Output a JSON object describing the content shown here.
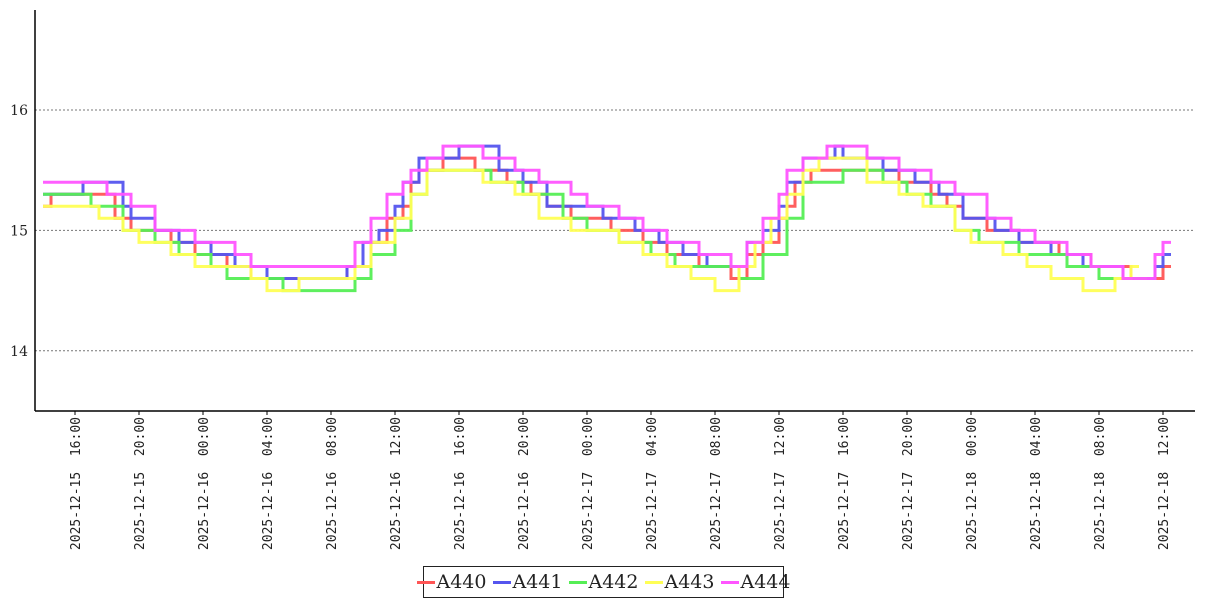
{
  "chart_data": {
    "type": "line",
    "step": true,
    "ylim": [
      13.5,
      16.83
    ],
    "yticks": [
      "14",
      "15",
      "16"
    ],
    "grid": "horizontal dotted at y ticks",
    "legend_placement": "bottom-center",
    "x_range": [
      "2025-12-15 13:30",
      "2025-12-18 14:00"
    ],
    "xticks": [
      "2025-12-15 16:00",
      "2025-12-15 20:00",
      "2025-12-16 00:00",
      "2025-12-16 04:00",
      "2025-12-16 08:00",
      "2025-12-16 12:00",
      "2025-12-16 16:00",
      "2025-12-16 20:00",
      "2025-12-17 00:00",
      "2025-12-17 04:00",
      "2025-12-17 08:00",
      "2025-12-17 12:00",
      "2025-12-17 16:00",
      "2025-12-17 20:00",
      "2025-12-18 00:00",
      "2025-12-18 04:00",
      "2025-12-18 08:00",
      "2025-12-18 12:00"
    ],
    "series": [
      {
        "name": "A440",
        "color": "#ff5555",
        "x": [
          "2025-12-15 14:00",
          "2025-12-15 14:30",
          "2025-12-15 18:30",
          "2025-12-15 19:30",
          "2025-12-15 20:00",
          "2025-12-15 22:00",
          "2025-12-15 23:30",
          "2025-12-16 01:30",
          "2025-12-16 03:00",
          "2025-12-16 05:00",
          "2025-12-16 09:00",
          "2025-12-16 10:30",
          "2025-12-16 11:30",
          "2025-12-16 12:30",
          "2025-12-16 13:00",
          "2025-12-16 13:30",
          "2025-12-16 15:00",
          "2025-12-16 17:00",
          "2025-12-16 19:00",
          "2025-12-16 20:30",
          "2025-12-16 21:30",
          "2025-12-16 23:00",
          "2025-12-17 01:30",
          "2025-12-17 03:30",
          "2025-12-17 05:00",
          "2025-12-17 07:00",
          "2025-12-17 09:00",
          "2025-12-17 10:00",
          "2025-12-17 11:00",
          "2025-12-17 12:00",
          "2025-12-17 12:30",
          "2025-12-17 13:00",
          "2025-12-17 14:00",
          "2025-12-17 17:30",
          "2025-12-17 19:30",
          "2025-12-17 21:30",
          "2025-12-17 22:30",
          "2025-12-17 23:30",
          "2025-12-18 01:00",
          "2025-12-18 03:00",
          "2025-12-18 05:30",
          "2025-12-18 07:30",
          "2025-12-18 10:00",
          "2025-12-18 12:00"
        ],
        "values": [
          15.2,
          15.3,
          15.1,
          15.0,
          15.0,
          14.9,
          14.8,
          14.7,
          14.6,
          14.6,
          14.7,
          14.9,
          15.1,
          15.2,
          15.4,
          15.5,
          15.6,
          15.5,
          15.4,
          15.3,
          15.2,
          15.1,
          15.0,
          14.9,
          14.8,
          14.7,
          14.6,
          14.8,
          14.9,
          15.1,
          15.2,
          15.4,
          15.5,
          15.5,
          15.4,
          15.3,
          15.2,
          15.1,
          15.0,
          14.9,
          14.8,
          14.7,
          14.6,
          14.7
        ]
      },
      {
        "name": "A441",
        "color": "#5555ee",
        "x": [
          "2025-12-15 14:00",
          "2025-12-15 14:30",
          "2025-12-15 16:30",
          "2025-12-15 19:00",
          "2025-12-15 19:30",
          "2025-12-15 21:00",
          "2025-12-15 22:30",
          "2025-12-16 00:30",
          "2025-12-16 02:00",
          "2025-12-16 04:00",
          "2025-12-16 09:00",
          "2025-12-16 10:00",
          "2025-12-16 11:00",
          "2025-12-16 12:00",
          "2025-12-16 12:30",
          "2025-12-16 13:30",
          "2025-12-16 16:00",
          "2025-12-16 18:30",
          "2025-12-16 20:00",
          "2025-12-16 21:30",
          "2025-12-16 22:30",
          "2025-12-17 01:00",
          "2025-12-17 03:00",
          "2025-12-17 04:30",
          "2025-12-17 06:00",
          "2025-12-17 07:30",
          "2025-12-17 09:00",
          "2025-12-17 10:00",
          "2025-12-17 11:00",
          "2025-12-17 12:00",
          "2025-12-17 12:30",
          "2025-12-17 13:30",
          "2025-12-17 15:30",
          "2025-12-17 16:00",
          "2025-12-17 18:30",
          "2025-12-17 20:30",
          "2025-12-17 22:00",
          "2025-12-17 23:30",
          "2025-12-18 01:30",
          "2025-12-18 03:00",
          "2025-12-18 05:00",
          "2025-12-18 07:00",
          "2025-12-18 09:30",
          "2025-12-18 11:30",
          "2025-12-18 12:00"
        ],
        "values": [
          15.3,
          15.3,
          15.4,
          15.2,
          15.1,
          15.0,
          14.9,
          14.8,
          14.7,
          14.6,
          14.7,
          14.9,
          15.0,
          15.2,
          15.4,
          15.6,
          15.7,
          15.5,
          15.4,
          15.2,
          15.2,
          15.1,
          15.0,
          14.9,
          14.8,
          14.7,
          14.7,
          14.9,
          15.0,
          15.2,
          15.4,
          15.6,
          15.7,
          15.6,
          15.5,
          15.4,
          15.3,
          15.1,
          15.0,
          14.9,
          14.8,
          14.7,
          14.6,
          14.7,
          14.8
        ]
      },
      {
        "name": "A442",
        "color": "#55ee55",
        "x": [
          "2025-12-15 14:00",
          "2025-12-15 17:00",
          "2025-12-15 19:00",
          "2025-12-15 21:00",
          "2025-12-15 22:30",
          "2025-12-16 00:30",
          "2025-12-16 01:30",
          "2025-12-16 03:00",
          "2025-12-16 05:00",
          "2025-12-16 09:30",
          "2025-12-16 10:30",
          "2025-12-16 12:00",
          "2025-12-16 13:00",
          "2025-12-16 14:00",
          "2025-12-16 18:00",
          "2025-12-16 20:00",
          "2025-12-16 22:30",
          "2025-12-17 00:00",
          "2025-12-17 02:00",
          "2025-12-17 04:00",
          "2025-12-17 05:30",
          "2025-12-17 06:30",
          "2025-12-17 09:30",
          "2025-12-17 11:00",
          "2025-12-17 12:30",
          "2025-12-17 13:30",
          "2025-12-17 16:00",
          "2025-12-17 18:30",
          "2025-12-17 20:00",
          "2025-12-17 21:30",
          "2025-12-17 23:00",
          "2025-12-18 00:30",
          "2025-12-18 03:00",
          "2025-12-18 06:00",
          "2025-12-18 08:00",
          "2025-12-18 10:30"
        ],
        "values": [
          15.3,
          15.2,
          15.0,
          14.9,
          14.8,
          14.7,
          14.6,
          14.6,
          14.5,
          14.6,
          14.8,
          15.0,
          15.3,
          15.5,
          15.4,
          15.3,
          15.1,
          15.0,
          14.9,
          14.8,
          14.7,
          14.7,
          14.6,
          14.8,
          15.1,
          15.4,
          15.5,
          15.4,
          15.3,
          15.2,
          15.0,
          14.9,
          14.8,
          14.7,
          14.6,
          14.6
        ]
      },
      {
        "name": "A443",
        "color": "#ffff55",
        "x": [
          "2025-12-15 14:00",
          "2025-12-15 17:30",
          "2025-12-15 19:00",
          "2025-12-15 20:00",
          "2025-12-15 22:00",
          "2025-12-15 23:30",
          "2025-12-16 03:00",
          "2025-12-16 04:00",
          "2025-12-16 06:00",
          "2025-12-16 09:30",
          "2025-12-16 10:30",
          "2025-12-16 12:00",
          "2025-12-16 13:00",
          "2025-12-16 14:00",
          "2025-12-16 17:30",
          "2025-12-16 19:30",
          "2025-12-16 21:00",
          "2025-12-16 23:00",
          "2025-12-17 00:00",
          "2025-12-17 02:00",
          "2025-12-17 03:30",
          "2025-12-17 05:00",
          "2025-12-17 06:30",
          "2025-12-17 08:00",
          "2025-12-17 09:30",
          "2025-12-17 10:30",
          "2025-12-17 11:30",
          "2025-12-17 12:30",
          "2025-12-17 13:30",
          "2025-12-17 14:30",
          "2025-12-17 17:30",
          "2025-12-17 19:30",
          "2025-12-17 21:00",
          "2025-12-17 23:00",
          "2025-12-18 00:00",
          "2025-12-18 02:00",
          "2025-12-18 03:30",
          "2025-12-18 05:00",
          "2025-12-18 07:00",
          "2025-12-18 09:00",
          "2025-12-18 10:00"
        ],
        "values": [
          15.2,
          15.1,
          15.0,
          14.9,
          14.8,
          14.7,
          14.6,
          14.5,
          14.6,
          14.7,
          14.9,
          15.1,
          15.3,
          15.5,
          15.4,
          15.3,
          15.1,
          15.0,
          15.0,
          14.9,
          14.8,
          14.7,
          14.6,
          14.5,
          14.7,
          14.9,
          15.1,
          15.3,
          15.5,
          15.6,
          15.4,
          15.3,
          15.2,
          15.0,
          14.9,
          14.8,
          14.7,
          14.6,
          14.5,
          14.6,
          14.7
        ]
      },
      {
        "name": "A444",
        "color": "#ff55ff",
        "x": [
          "2025-12-15 14:00",
          "2025-12-15 18:00",
          "2025-12-15 19:30",
          "2025-12-15 21:00",
          "2025-12-15 23:30",
          "2025-12-16 02:00",
          "2025-12-16 03:00",
          "2025-12-16 08:30",
          "2025-12-16 09:30",
          "2025-12-16 10:30",
          "2025-12-16 11:30",
          "2025-12-16 12:30",
          "2025-12-16 13:00",
          "2025-12-16 14:00",
          "2025-12-16 15:00",
          "2025-12-16 17:30",
          "2025-12-16 19:30",
          "2025-12-16 21:00",
          "2025-12-16 23:00",
          "2025-12-17 00:00",
          "2025-12-17 02:00",
          "2025-12-17 03:30",
          "2025-12-17 05:00",
          "2025-12-17 07:00",
          "2025-12-17 09:00",
          "2025-12-17 10:00",
          "2025-12-17 11:00",
          "2025-12-17 12:00",
          "2025-12-17 12:30",
          "2025-12-17 13:30",
          "2025-12-17 15:00",
          "2025-12-17 17:30",
          "2025-12-17 19:30",
          "2025-12-17 21:30",
          "2025-12-17 23:00",
          "2025-12-18 01:00",
          "2025-12-18 02:30",
          "2025-12-18 04:00",
          "2025-12-18 06:00",
          "2025-12-18 07:30",
          "2025-12-18 09:30",
          "2025-12-18 11:30",
          "2025-12-18 12:00"
        ],
        "values": [
          15.4,
          15.3,
          15.2,
          15.0,
          14.9,
          14.8,
          14.7,
          14.7,
          14.9,
          15.1,
          15.3,
          15.4,
          15.5,
          15.6,
          15.7,
          15.6,
          15.5,
          15.4,
          15.3,
          15.2,
          15.1,
          15.0,
          14.9,
          14.8,
          14.7,
          14.9,
          15.1,
          15.3,
          15.5,
          15.6,
          15.7,
          15.6,
          15.5,
          15.4,
          15.3,
          15.1,
          15.0,
          14.9,
          14.8,
          14.7,
          14.6,
          14.8,
          14.9
        ]
      }
    ]
  }
}
